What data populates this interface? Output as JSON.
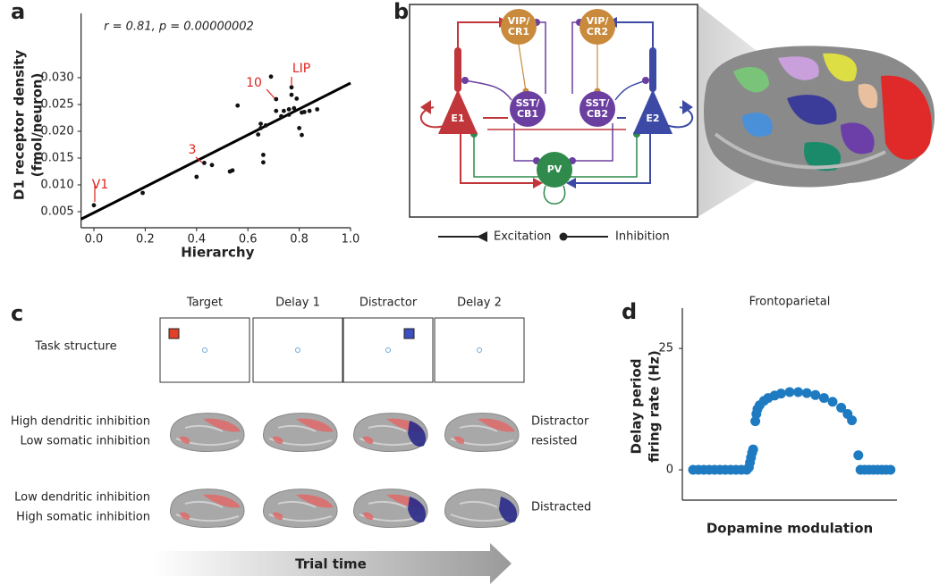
{
  "chart_data": [
    {
      "type": "scatter",
      "label": "a",
      "annotation": "r = 0.81, p = 0.00000002",
      "x_label": "Hierarchy",
      "y_label": [
        "D1 receptor density",
        "(fmol/neuron)"
      ],
      "x": [
        0.0,
        0.19,
        0.4,
        0.43,
        0.46,
        0.53,
        0.54,
        0.56,
        0.64,
        0.65,
        0.65,
        0.66,
        0.66,
        0.67,
        0.69,
        0.71,
        0.71,
        0.73,
        0.74,
        0.76,
        0.76,
        0.77,
        0.77,
        0.78,
        0.79,
        0.8,
        0.81,
        0.81,
        0.82,
        0.84,
        0.87
      ],
      "values": [
        0.0062,
        0.0085,
        0.0115,
        0.0141,
        0.0137,
        0.0125,
        0.0127,
        0.0248,
        0.0194,
        0.0214,
        0.0206,
        0.0156,
        0.0142,
        0.0211,
        0.0302,
        0.0238,
        0.026,
        0.0228,
        0.0238,
        0.0231,
        0.0241,
        0.0282,
        0.0268,
        0.0243,
        0.0261,
        0.0206,
        0.0235,
        0.0193,
        0.0236,
        0.0238,
        0.0241
      ],
      "color": "#111111",
      "fit_line": {
        "x": [
          -0.05,
          1.0
        ],
        "y": [
          0.0036,
          0.029
        ]
      },
      "annotations": [
        "V1",
        "3",
        "10",
        "LIP"
      ],
      "annotation_color": "#e0231c",
      "xlim": [
        -0.05,
        1.0
      ],
      "ylim": [
        0.002,
        0.042
      ],
      "xticks": [
        {
          "value": 0,
          "label": "0.0"
        },
        0.2,
        0.4,
        0.6,
        0.8,
        {
          "value": 1,
          "label": "1.0"
        }
      ],
      "yticks": [
        0.005,
        {
          "value": 0.01,
          "label": "0.010"
        },
        0.015,
        {
          "value": 0.02,
          "label": "0.020"
        },
        0.025,
        {
          "value": 0.03,
          "label": "0.030"
        }
      ]
    },
    {
      "type": "scatter",
      "label": "d",
      "title": "Frontoparietal",
      "x_label": "Dopamine modulation",
      "y_label": [
        "Delay period",
        "firing rate (Hz)"
      ],
      "x": [
        0.05,
        0.075,
        0.1,
        0.125,
        0.15,
        0.175,
        0.2,
        0.225,
        0.25,
        0.275,
        0.3,
        0.31,
        0.315,
        0.32,
        0.325,
        0.33,
        0.34,
        0.345,
        0.35,
        0.36,
        0.38,
        0.4,
        0.43,
        0.46,
        0.5,
        0.54,
        0.58,
        0.62,
        0.66,
        0.7,
        0.74,
        0.77,
        0.79,
        0.82,
        0.83,
        0.85,
        0.87,
        0.89,
        0.91,
        0.93,
        0.95,
        0.97
      ],
      "values": [
        0,
        0,
        0,
        0,
        0,
        0,
        0,
        0,
        0,
        0,
        0,
        0.5,
        1.5,
        2.5,
        3.5,
        4.2,
        10.0,
        11.5,
        12.5,
        13.3,
        14.2,
        14.8,
        15.3,
        15.7,
        16.0,
        16.0,
        15.8,
        15.4,
        14.8,
        14.0,
        12.8,
        11.5,
        10.2,
        3.0,
        0,
        0,
        0,
        0,
        0,
        0,
        0,
        0
      ],
      "color": "#1f7bc1",
      "xlim": [
        0,
        1
      ],
      "ylim": [
        -6.25,
        33.3
      ],
      "yticks": [
        0,
        25
      ]
    }
  ],
  "diagram": {
    "label": "b",
    "nodes": [
      [
        "VIP/",
        "CR1"
      ],
      [
        "VIP/",
        "CR2"
      ],
      [
        "SST/",
        "CB1"
      ],
      [
        "SST/",
        "CB2"
      ],
      [
        "E1"
      ],
      [
        "E2"
      ],
      [
        "PV"
      ]
    ],
    "legend": [
      "Excitation",
      "Inhibition"
    ]
  },
  "task": {
    "label": "c",
    "columns": [
      "Target",
      "Delay 1",
      "Distractor",
      "Delay 2"
    ],
    "row_label": "Task structure",
    "conditions": [
      {
        "label": [
          "High dendritic inhibition",
          "Low somatic inhibition"
        ],
        "outcome": [
          "Distractor",
          "resisted"
        ]
      },
      {
        "label": [
          "Low dendritic inhibition",
          "High somatic inhibition"
        ],
        "outcome": [
          "Distracted"
        ]
      }
    ],
    "arrow": "Trial time"
  }
}
